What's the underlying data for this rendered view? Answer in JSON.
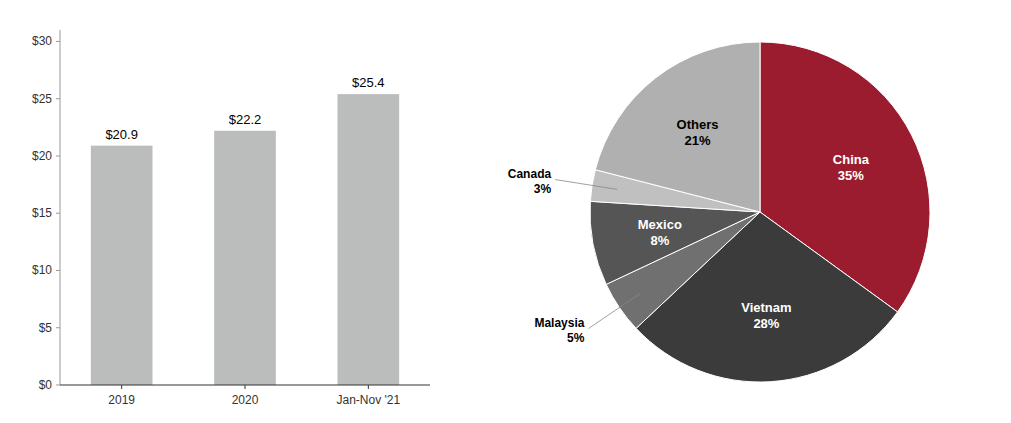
{
  "chart_data": [
    {
      "type": "bar",
      "categories": [
        "2019",
        "2020",
        "Jan-Nov '21"
      ],
      "values": [
        20.9,
        22.2,
        25.4
      ],
      "value_labels": [
        "$20.9",
        "$22.2",
        "$25.4"
      ],
      "data_labels": true,
      "color": "#bbbcbc",
      "ylim": [
        0,
        31
      ],
      "yticks": [
        {
          "value": 0,
          "label": "$0"
        },
        {
          "value": 5,
          "label": "$5"
        },
        {
          "value": 10,
          "label": "$10"
        },
        {
          "value": 15,
          "label": "$15"
        },
        {
          "value": 20,
          "label": "$20"
        },
        {
          "value": 25,
          "label": "$25"
        },
        {
          "value": 30,
          "label": "$30"
        }
      ],
      "grid": false
    },
    {
      "type": "pie",
      "categories": [
        "China",
        "Vietnam",
        "Malaysia",
        "Mexico",
        "Canada",
        "Others"
      ],
      "values": [
        35,
        28,
        5,
        8,
        3,
        21
      ],
      "value_labels": [
        "35%",
        "28%",
        "5%",
        "8%",
        "3%",
        "21%"
      ],
      "colors": [
        "#9b1c2e",
        "#3b3b3b",
        "#707070",
        "#555555",
        "#c0c0c0",
        "#b0b0b0"
      ]
    }
  ]
}
